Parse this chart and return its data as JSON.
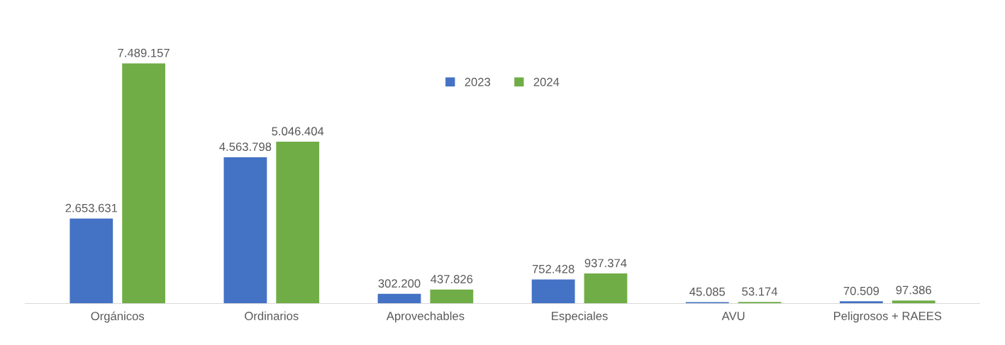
{
  "chart_data": {
    "type": "bar",
    "categories": [
      "Orgánicos",
      "Ordinarios",
      "Aprovechables",
      "Especiales",
      "AVU",
      "Peligrosos + RAEES"
    ],
    "series": [
      {
        "name": "2023",
        "color": "#4472c4",
        "values": [
          2653631,
          4563798,
          302200,
          752428,
          45085,
          70509
        ],
        "value_labels": [
          "2.653.631",
          "4.563.798",
          "302.200",
          "752.428",
          "45.085",
          "70.509"
        ]
      },
      {
        "name": "2024",
        "color": "#70ad47",
        "values": [
          7489157,
          5046404,
          437826,
          937374,
          53174,
          97386
        ],
        "value_labels": [
          "7.489.157",
          "5.046.404",
          "437.826",
          "937.374",
          "53.174",
          "97.386"
        ]
      }
    ],
    "legend": "top",
    "grid": false
  }
}
